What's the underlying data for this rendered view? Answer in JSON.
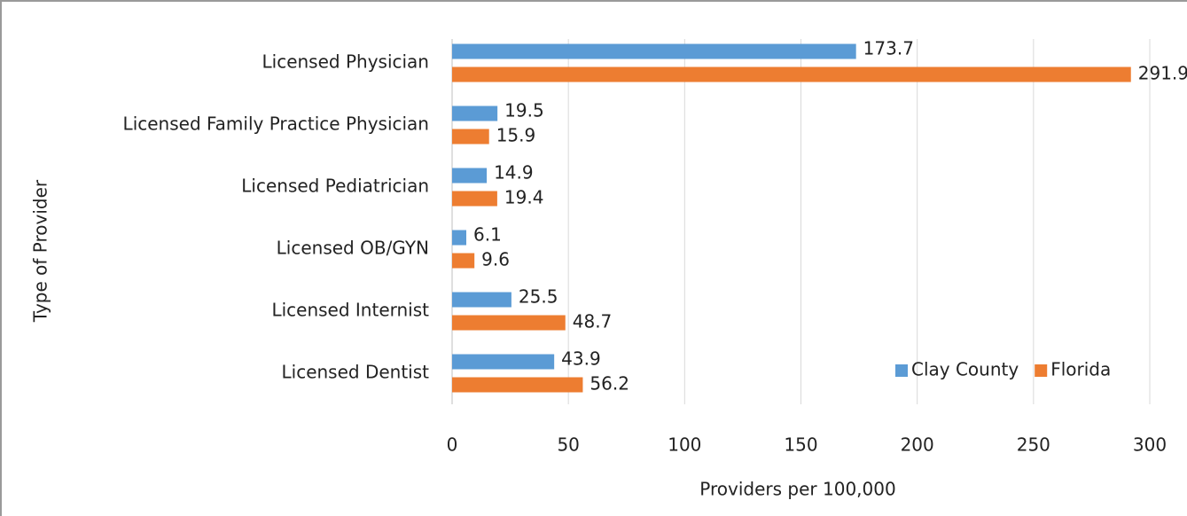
{
  "chart_data": {
    "type": "hbar",
    "categories": [
      "Licensed Physician",
      "Licensed Family Practice Physician",
      "Licensed Pediatrician",
      "Licensed OB/GYN",
      "Licensed Internist",
      "Licensed Dentist"
    ],
    "series": [
      {
        "name": "Clay County",
        "color": "#5b9bd5",
        "values": [
          173.7,
          19.5,
          14.9,
          6.1,
          25.5,
          43.9
        ]
      },
      {
        "name": "Florida",
        "color": "#ed7d31",
        "values": [
          291.9,
          15.9,
          19.4,
          9.6,
          48.7,
          56.2
        ]
      }
    ],
    "xlabel": "Providers per 100,000",
    "ylabel": "Type of Provider",
    "xlim": [
      0,
      300
    ],
    "xticks": [
      0,
      50,
      100,
      150,
      200,
      250,
      300
    ],
    "grid": true,
    "legend": "lower right"
  }
}
